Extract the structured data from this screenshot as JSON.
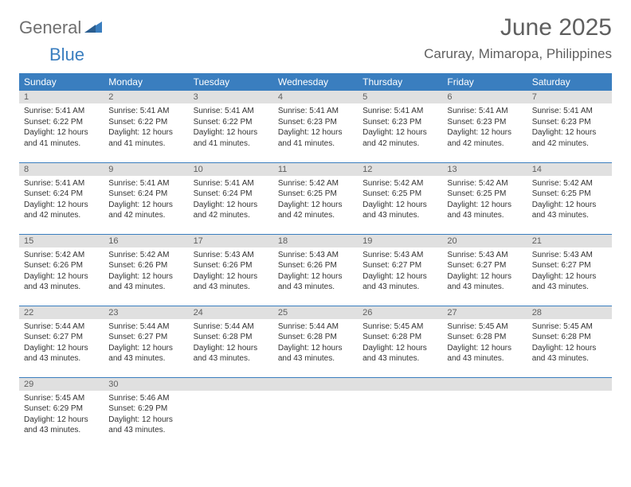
{
  "logo": {
    "textA": "General",
    "textB": "Blue",
    "triColor": "#3a7ebf",
    "textAColor": "#6f6f6f"
  },
  "title": "June 2025",
  "subtitle": "Caruray, Mimaropa, Philippines",
  "colors": {
    "headerBg": "#3a7ebf",
    "headerText": "#ffffff",
    "dayStripBg": "#e0e0e0",
    "ruleColor": "#3a7ebf",
    "bodyText": "#333333",
    "titleText": "#5f5f5f"
  },
  "dows": [
    "Sunday",
    "Monday",
    "Tuesday",
    "Wednesday",
    "Thursday",
    "Friday",
    "Saturday"
  ],
  "weeks": [
    [
      {
        "n": "1",
        "sunrise": "Sunrise: 5:41 AM",
        "sunset": "Sunset: 6:22 PM",
        "day": "Daylight: 12 hours and 41 minutes."
      },
      {
        "n": "2",
        "sunrise": "Sunrise: 5:41 AM",
        "sunset": "Sunset: 6:22 PM",
        "day": "Daylight: 12 hours and 41 minutes."
      },
      {
        "n": "3",
        "sunrise": "Sunrise: 5:41 AM",
        "sunset": "Sunset: 6:22 PM",
        "day": "Daylight: 12 hours and 41 minutes."
      },
      {
        "n": "4",
        "sunrise": "Sunrise: 5:41 AM",
        "sunset": "Sunset: 6:23 PM",
        "day": "Daylight: 12 hours and 41 minutes."
      },
      {
        "n": "5",
        "sunrise": "Sunrise: 5:41 AM",
        "sunset": "Sunset: 6:23 PM",
        "day": "Daylight: 12 hours and 42 minutes."
      },
      {
        "n": "6",
        "sunrise": "Sunrise: 5:41 AM",
        "sunset": "Sunset: 6:23 PM",
        "day": "Daylight: 12 hours and 42 minutes."
      },
      {
        "n": "7",
        "sunrise": "Sunrise: 5:41 AM",
        "sunset": "Sunset: 6:23 PM",
        "day": "Daylight: 12 hours and 42 minutes."
      }
    ],
    [
      {
        "n": "8",
        "sunrise": "Sunrise: 5:41 AM",
        "sunset": "Sunset: 6:24 PM",
        "day": "Daylight: 12 hours and 42 minutes."
      },
      {
        "n": "9",
        "sunrise": "Sunrise: 5:41 AM",
        "sunset": "Sunset: 6:24 PM",
        "day": "Daylight: 12 hours and 42 minutes."
      },
      {
        "n": "10",
        "sunrise": "Sunrise: 5:41 AM",
        "sunset": "Sunset: 6:24 PM",
        "day": "Daylight: 12 hours and 42 minutes."
      },
      {
        "n": "11",
        "sunrise": "Sunrise: 5:42 AM",
        "sunset": "Sunset: 6:25 PM",
        "day": "Daylight: 12 hours and 42 minutes."
      },
      {
        "n": "12",
        "sunrise": "Sunrise: 5:42 AM",
        "sunset": "Sunset: 6:25 PM",
        "day": "Daylight: 12 hours and 43 minutes."
      },
      {
        "n": "13",
        "sunrise": "Sunrise: 5:42 AM",
        "sunset": "Sunset: 6:25 PM",
        "day": "Daylight: 12 hours and 43 minutes."
      },
      {
        "n": "14",
        "sunrise": "Sunrise: 5:42 AM",
        "sunset": "Sunset: 6:25 PM",
        "day": "Daylight: 12 hours and 43 minutes."
      }
    ],
    [
      {
        "n": "15",
        "sunrise": "Sunrise: 5:42 AM",
        "sunset": "Sunset: 6:26 PM",
        "day": "Daylight: 12 hours and 43 minutes."
      },
      {
        "n": "16",
        "sunrise": "Sunrise: 5:42 AM",
        "sunset": "Sunset: 6:26 PM",
        "day": "Daylight: 12 hours and 43 minutes."
      },
      {
        "n": "17",
        "sunrise": "Sunrise: 5:43 AM",
        "sunset": "Sunset: 6:26 PM",
        "day": "Daylight: 12 hours and 43 minutes."
      },
      {
        "n": "18",
        "sunrise": "Sunrise: 5:43 AM",
        "sunset": "Sunset: 6:26 PM",
        "day": "Daylight: 12 hours and 43 minutes."
      },
      {
        "n": "19",
        "sunrise": "Sunrise: 5:43 AM",
        "sunset": "Sunset: 6:27 PM",
        "day": "Daylight: 12 hours and 43 minutes."
      },
      {
        "n": "20",
        "sunrise": "Sunrise: 5:43 AM",
        "sunset": "Sunset: 6:27 PM",
        "day": "Daylight: 12 hours and 43 minutes."
      },
      {
        "n": "21",
        "sunrise": "Sunrise: 5:43 AM",
        "sunset": "Sunset: 6:27 PM",
        "day": "Daylight: 12 hours and 43 minutes."
      }
    ],
    [
      {
        "n": "22",
        "sunrise": "Sunrise: 5:44 AM",
        "sunset": "Sunset: 6:27 PM",
        "day": "Daylight: 12 hours and 43 minutes."
      },
      {
        "n": "23",
        "sunrise": "Sunrise: 5:44 AM",
        "sunset": "Sunset: 6:27 PM",
        "day": "Daylight: 12 hours and 43 minutes."
      },
      {
        "n": "24",
        "sunrise": "Sunrise: 5:44 AM",
        "sunset": "Sunset: 6:28 PM",
        "day": "Daylight: 12 hours and 43 minutes."
      },
      {
        "n": "25",
        "sunrise": "Sunrise: 5:44 AM",
        "sunset": "Sunset: 6:28 PM",
        "day": "Daylight: 12 hours and 43 minutes."
      },
      {
        "n": "26",
        "sunrise": "Sunrise: 5:45 AM",
        "sunset": "Sunset: 6:28 PM",
        "day": "Daylight: 12 hours and 43 minutes."
      },
      {
        "n": "27",
        "sunrise": "Sunrise: 5:45 AM",
        "sunset": "Sunset: 6:28 PM",
        "day": "Daylight: 12 hours and 43 minutes."
      },
      {
        "n": "28",
        "sunrise": "Sunrise: 5:45 AM",
        "sunset": "Sunset: 6:28 PM",
        "day": "Daylight: 12 hours and 43 minutes."
      }
    ],
    [
      {
        "n": "29",
        "sunrise": "Sunrise: 5:45 AM",
        "sunset": "Sunset: 6:29 PM",
        "day": "Daylight: 12 hours and 43 minutes."
      },
      {
        "n": "30",
        "sunrise": "Sunrise: 5:46 AM",
        "sunset": "Sunset: 6:29 PM",
        "day": "Daylight: 12 hours and 43 minutes."
      },
      {
        "empty": true
      },
      {
        "empty": true
      },
      {
        "empty": true
      },
      {
        "empty": true
      },
      {
        "empty": true
      }
    ]
  ]
}
